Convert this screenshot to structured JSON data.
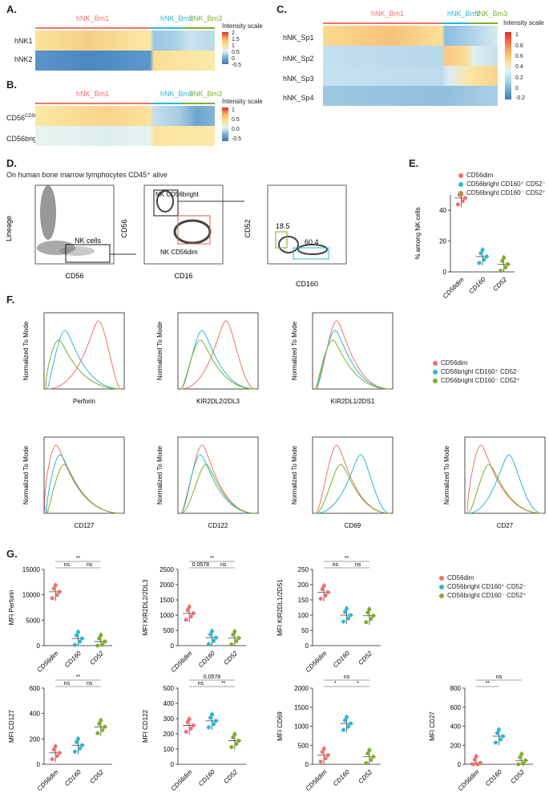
{
  "panels": {
    "A": {
      "letter": "A.",
      "rows": [
        "hNK1",
        "hNK2"
      ],
      "groups": [
        "hNK_Bm1",
        "hNK_Bm2",
        "hNK_Bm3"
      ],
      "scale_title": "Intensity scale",
      "scale_ticks": [
        "2",
        "1.5",
        "1",
        "0.5",
        "0",
        "-0.5"
      ]
    },
    "B": {
      "letter": "B.",
      "rows": [
        "CD56dim",
        "CD56bright"
      ],
      "groups": [
        "hNK_Bm1",
        "hNK_Bm2",
        "hNK_Bm3"
      ],
      "scale_title": "Intensity scale",
      "scale_ticks": [
        "1",
        "0.5",
        "0.0",
        "-0.5"
      ]
    },
    "C": {
      "letter": "C.",
      "rows": [
        "hNK_Sp1",
        "hNK_Sp2",
        "hNK_Sp3",
        "hNK_Sp4"
      ],
      "groups": [
        "hNK_Bm1",
        "hNK_Bm2",
        "hNK_Bm3"
      ],
      "scale_title": "Intensity scale",
      "scale_ticks": [
        "1",
        "0.8",
        "0.6",
        "0.4",
        "0.2",
        "0",
        "-0.2"
      ]
    },
    "D": {
      "letter": "D.",
      "caption": "On human bone marrow lymphocytes CD45⁺ alive",
      "plot1": {
        "ylabel": "Lineage",
        "xlabel": "CD56",
        "gate": "NK cells"
      },
      "plot2": {
        "ylabel": "CD56",
        "xlabel": "CD16",
        "gate_top": "NK CD56bright",
        "gate_bottom": "NK CD56dim"
      },
      "plot3": {
        "ylabel": "CD52",
        "xlabel": "CD160",
        "val1": "18.5",
        "val2": "60.4"
      }
    },
    "E": {
      "letter": "E.",
      "ylabel": "% among NK cells",
      "categories": [
        "CD56dim",
        "CD160",
        "CD52"
      ]
    },
    "F": {
      "letter": "F.",
      "ylabel": "Normalized To Mode",
      "xlabels": [
        "Perforin",
        "KIR2DL2/2DL3",
        "KIR2DL1/2DS1",
        "CD127",
        "CD122",
        "CD69",
        "CD27"
      ]
    },
    "G": {
      "letter": "G.",
      "ylabels": [
        "MFI Perforin",
        "MFI KIR2DL2/2DL3",
        "MFI KIR2DL1/2DS1",
        "MFI CD127",
        "MFI CD122",
        "MFI CD69",
        "MFI CD27"
      ],
      "categories": [
        "CD56dim",
        "CD160",
        "CD52"
      ]
    }
  },
  "legend": [
    {
      "label": "CD56dim",
      "color": "#f0716a"
    },
    {
      "label": "CD56bright CD160⁺ CD52⁻",
      "color": "#2bb7d4"
    },
    {
      "label": "CD56bright CD160⁻ CD52⁺",
      "color": "#7cae2a"
    }
  ],
  "chart_data": [
    {
      "type": "scatter",
      "panel": "E",
      "categories": [
        "CD56dim",
        "CD160",
        "CD52"
      ],
      "series": [
        {
          "values": [
            48,
            10,
            5
          ]
        }
      ],
      "ylim": [
        0,
        50
      ],
      "yticks": [
        0,
        20,
        40
      ]
    },
    {
      "type": "scatter",
      "panel": "G1",
      "ylabel": "MFI Perforin",
      "categories": [
        "CD56dim",
        "CD160",
        "CD52"
      ],
      "values": [
        10600,
        1400,
        800
      ],
      "ylim": [
        0,
        15000
      ],
      "yticks": [
        0,
        5000,
        10000,
        15000
      ],
      "sig": [
        "ns",
        "**",
        "ns"
      ]
    },
    {
      "type": "scatter",
      "panel": "G2",
      "ylabel": "MFI KIR2DL2/2DL3",
      "categories": [
        "CD56dim",
        "CD160",
        "CD52"
      ],
      "values": [
        1060,
        260,
        250
      ],
      "ylim": [
        0,
        2500
      ],
      "yticks": [
        0,
        500,
        1000,
        1500,
        2000,
        2500
      ],
      "sig": [
        "0.0578",
        "**",
        "ns"
      ]
    },
    {
      "type": "scatter",
      "panel": "G3",
      "ylabel": "MFI KIR2DL1/2DS1",
      "categories": [
        "CD56dim",
        "CD160",
        "CD52"
      ],
      "values": [
        175,
        100,
        98
      ],
      "ylim": [
        0,
        250
      ],
      "yticks": [
        0,
        50,
        100,
        150,
        200,
        250
      ],
      "sig": [
        "ns",
        "**",
        "ns"
      ]
    },
    {
      "type": "scatter",
      "panel": "G4",
      "ylabel": "MFI CD127",
      "categories": [
        "CD56dim",
        "CD160",
        "CD52"
      ],
      "values": [
        90,
        150,
        295
      ],
      "ylim": [
        0,
        600
      ],
      "yticks": [
        0,
        200,
        400,
        600
      ],
      "sig": [
        "ns",
        "**",
        "ns"
      ]
    },
    {
      "type": "scatter",
      "panel": "G5",
      "ylabel": "MFI CD122",
      "categories": [
        "CD56dim",
        "CD160",
        "CD52"
      ],
      "values": [
        255,
        285,
        155
      ],
      "ylim": [
        0,
        500
      ],
      "yticks": [
        0,
        100,
        200,
        300,
        400,
        500
      ],
      "sig": [
        "ns",
        "0.0578",
        "**"
      ]
    },
    {
      "type": "scatter",
      "panel": "G6",
      "ylabel": "MFI CD69",
      "categories": [
        "CD56dim",
        "CD160",
        "CD52"
      ],
      "values": [
        240,
        1070,
        200
      ],
      "ylim": [
        0,
        2000
      ],
      "yticks": [
        0,
        500,
        1000,
        1500,
        2000
      ],
      "sig": [
        "*",
        "ns",
        "*"
      ]
    },
    {
      "type": "scatter",
      "panel": "G7",
      "ylabel": "MFI CD27",
      "categories": [
        "CD56dim",
        "CD160",
        "CD52"
      ],
      "values": [
        15,
        295,
        40
      ],
      "ylim": [
        0,
        800
      ],
      "yticks": [
        0,
        200,
        400,
        600,
        800
      ],
      "sig": [
        "**",
        "ns"
      ]
    }
  ]
}
